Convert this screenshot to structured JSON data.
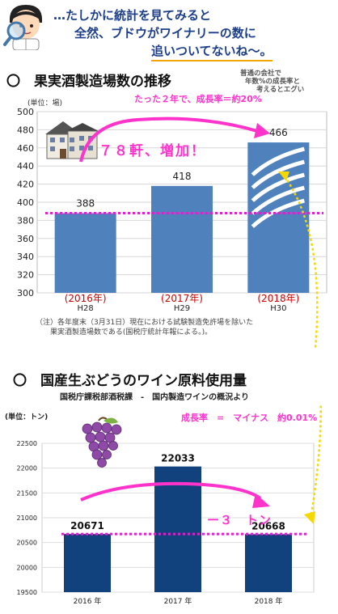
{
  "header": {
    "line1": "…たしかに統計を見てみると",
    "line2": "全然、ブドウがワイナリーの数に",
    "line3": "追いついてないね～。"
  },
  "section1": {
    "title": "〇　果実酒製造場数の推移",
    "side_note": [
      "普通の会社で",
      "年数%の成長率と",
      "考えるとエグい"
    ],
    "growth_note": "たった２年で、成長率＝約20%",
    "increase_note": "７８軒、増加！",
    "footnote_line1": "（注）各年度末（3月31日）現在における試験製造免許場を除いた",
    "footnote_line2": "果実酒製造場数である(国税庁統計年報による。)。"
  },
  "section2": {
    "title": "〇　国産生ぶどうのワイン原料使用量",
    "subtitle": "国税庁課税部酒税課　-　国内製造ワインの概況より",
    "growth_note": "成長率　=　マイナス　約0.01%",
    "decrease_note": "ー３　トン"
  },
  "colors": {
    "bar1": "#4f81bd",
    "bar2": "#12427d",
    "accent": "#ff33cc",
    "dotted": "#dd22cc",
    "header_text": "#1d3f8a",
    "orange": "#f5a300",
    "year_red": "#cc0000",
    "arrow_yellow": "#f5d800"
  },
  "icons": {
    "character": "magnifier-character-icon",
    "building": "building-icon",
    "grapes": "grape-icon"
  },
  "chart_data": [
    {
      "type": "bar",
      "ylabel": "(単位：場)",
      "ylim": [
        300,
        500
      ],
      "yticks": [
        300,
        320,
        340,
        360,
        380,
        400,
        420,
        440,
        460,
        480,
        500
      ],
      "grid": true,
      "categories": [
        "H28",
        "H29",
        "H30"
      ],
      "category_notes": [
        "(2016年)",
        "(2017年)",
        "(2018年)"
      ],
      "values": [
        388,
        418,
        466
      ],
      "data_labels": [
        "388",
        "418",
        "466"
      ]
    },
    {
      "type": "bar",
      "ylabel": "(単位：トン)",
      "ylim": [
        19500,
        22500
      ],
      "yticks": [
        19500,
        20000,
        20500,
        21000,
        21500,
        22000,
        22500
      ],
      "grid": true,
      "categories": [
        "2016 年",
        "2017 年",
        "2018 年"
      ],
      "values": [
        20671,
        22033,
        20668
      ],
      "data_labels": [
        "20671",
        "22033",
        "20668"
      ]
    }
  ]
}
